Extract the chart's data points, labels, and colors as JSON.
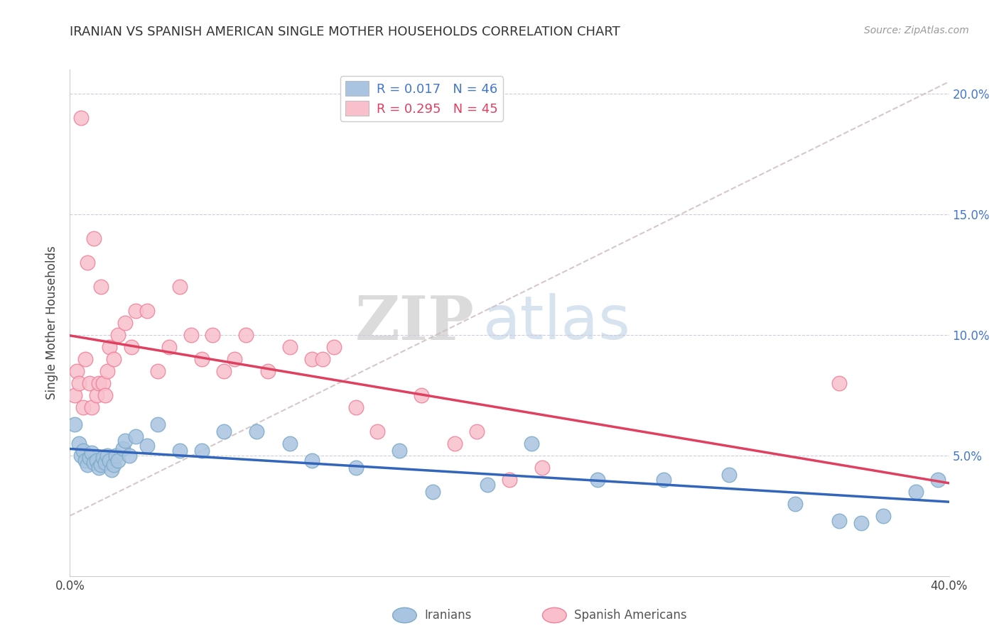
{
  "title": "IRANIAN VS SPANISH AMERICAN SINGLE MOTHER HOUSEHOLDS CORRELATION CHART",
  "source": "Source: ZipAtlas.com",
  "ylabel": "Single Mother Households",
  "xlim": [
    0.0,
    0.4
  ],
  "ylim": [
    0.0,
    0.21
  ],
  "x_ticks": [
    0.0,
    0.05,
    0.1,
    0.15,
    0.2,
    0.25,
    0.3,
    0.35,
    0.4
  ],
  "y_ticks": [
    0.05,
    0.1,
    0.15,
    0.2
  ],
  "y_tick_labels": [
    "5.0%",
    "10.0%",
    "15.0%",
    "20.0%"
  ],
  "iranian_color": "#a8c4e0",
  "iranian_edge": "#7aaac8",
  "spanish_color": "#f9c0cc",
  "spanish_edge": "#f08098",
  "iranian_trend_color": "#3366bb",
  "spanish_trend_color": "#e04060",
  "dash_color": "#ccbbbb",
  "iranian_R": 0.017,
  "iranian_N": 46,
  "spanish_R": 0.295,
  "spanish_N": 45,
  "watermark_zip": "ZIP",
  "watermark_atlas": "atlas",
  "iranians_x": [
    0.002,
    0.004,
    0.005,
    0.006,
    0.007,
    0.008,
    0.009,
    0.01,
    0.011,
    0.012,
    0.013,
    0.014,
    0.015,
    0.016,
    0.017,
    0.018,
    0.019,
    0.02,
    0.021,
    0.022,
    0.024,
    0.025,
    0.027,
    0.03,
    0.035,
    0.04,
    0.05,
    0.06,
    0.07,
    0.085,
    0.1,
    0.11,
    0.13,
    0.15,
    0.165,
    0.19,
    0.21,
    0.24,
    0.27,
    0.3,
    0.33,
    0.35,
    0.36,
    0.37,
    0.385,
    0.395
  ],
  "iranians_y": [
    0.063,
    0.055,
    0.05,
    0.052,
    0.048,
    0.046,
    0.049,
    0.051,
    0.047,
    0.048,
    0.045,
    0.046,
    0.049,
    0.047,
    0.05,
    0.048,
    0.044,
    0.046,
    0.05,
    0.048,
    0.053,
    0.056,
    0.05,
    0.058,
    0.054,
    0.063,
    0.052,
    0.052,
    0.06,
    0.06,
    0.055,
    0.048,
    0.045,
    0.052,
    0.035,
    0.038,
    0.055,
    0.04,
    0.04,
    0.042,
    0.03,
    0.023,
    0.022,
    0.025,
    0.035,
    0.04
  ],
  "spanish_x": [
    0.002,
    0.003,
    0.004,
    0.005,
    0.006,
    0.007,
    0.008,
    0.009,
    0.01,
    0.011,
    0.012,
    0.013,
    0.014,
    0.015,
    0.016,
    0.017,
    0.018,
    0.02,
    0.022,
    0.025,
    0.028,
    0.03,
    0.035,
    0.04,
    0.045,
    0.05,
    0.055,
    0.06,
    0.065,
    0.07,
    0.075,
    0.08,
    0.09,
    0.1,
    0.11,
    0.115,
    0.12,
    0.13,
    0.14,
    0.16,
    0.175,
    0.185,
    0.2,
    0.215,
    0.35
  ],
  "spanish_y": [
    0.075,
    0.085,
    0.08,
    0.19,
    0.07,
    0.09,
    0.13,
    0.08,
    0.07,
    0.14,
    0.075,
    0.08,
    0.12,
    0.08,
    0.075,
    0.085,
    0.095,
    0.09,
    0.1,
    0.105,
    0.095,
    0.11,
    0.11,
    0.085,
    0.095,
    0.12,
    0.1,
    0.09,
    0.1,
    0.085,
    0.09,
    0.1,
    0.085,
    0.095,
    0.09,
    0.09,
    0.095,
    0.07,
    0.06,
    0.075,
    0.055,
    0.06,
    0.04,
    0.045,
    0.08
  ]
}
